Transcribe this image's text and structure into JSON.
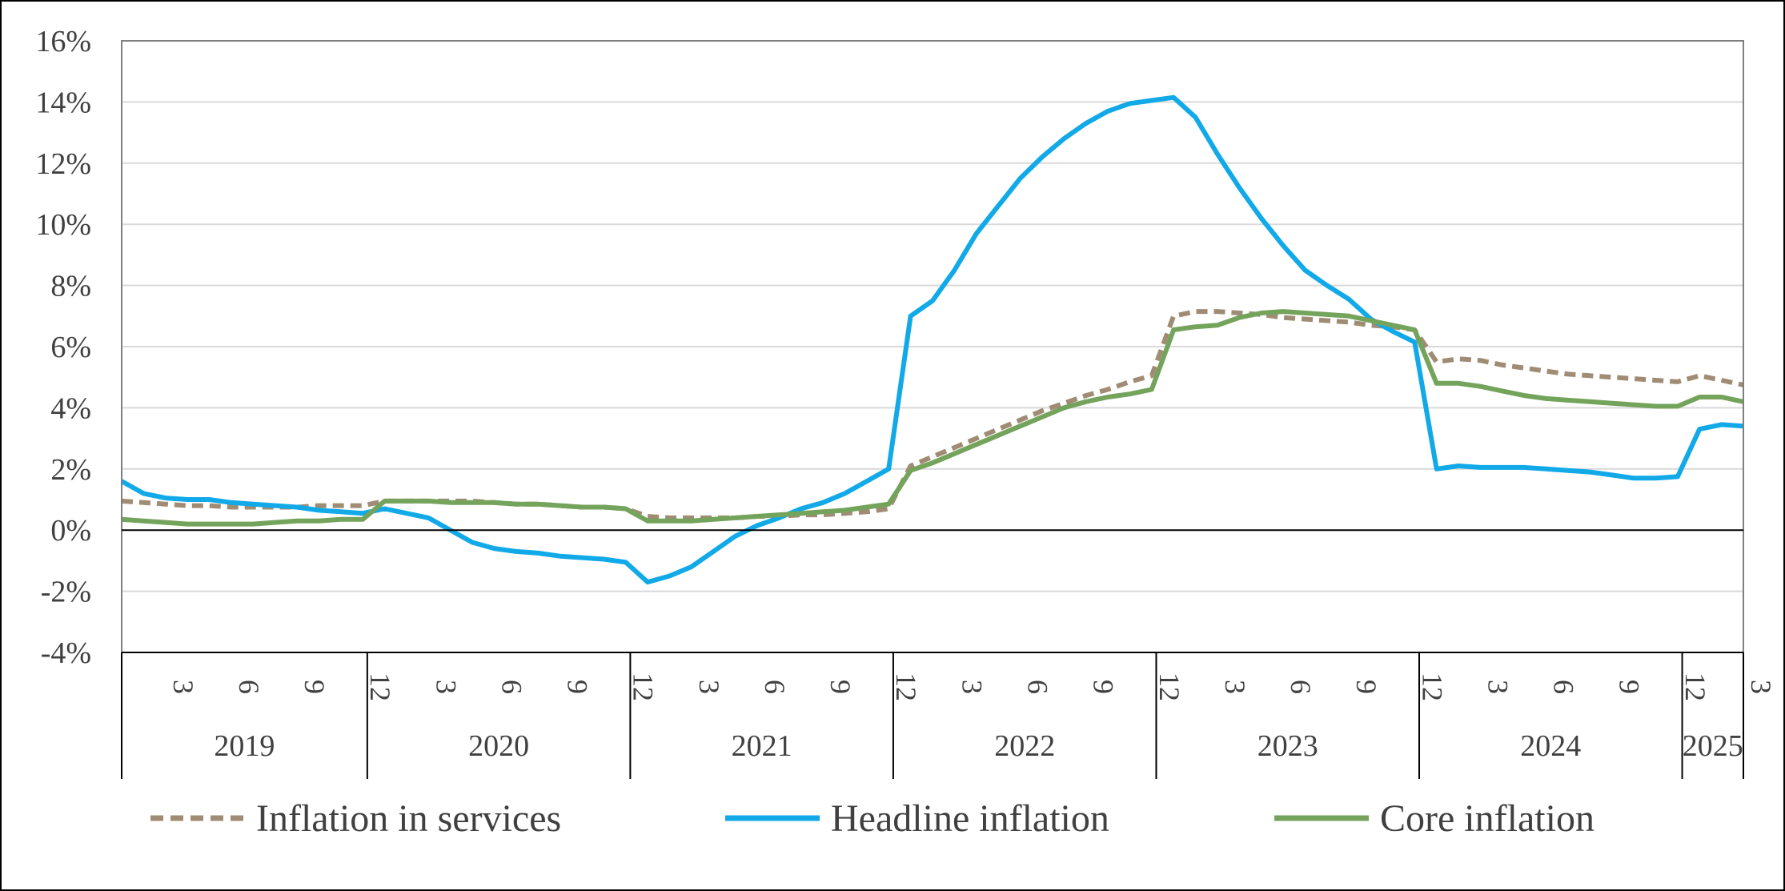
{
  "chart_data": {
    "type": "line",
    "title": "",
    "xlabel": "",
    "ylabel": "",
    "ylim": [
      -4,
      16
    ],
    "y_ticks": [
      -4,
      -2,
      0,
      2,
      4,
      6,
      8,
      10,
      12,
      14,
      16
    ],
    "y_tick_suffix": "%",
    "grid": "horizontal",
    "legend_position": "bottom",
    "month_ticks": [
      "3",
      "6",
      "9",
      "12"
    ],
    "years": [
      "2019",
      "2020",
      "2021",
      "2022",
      "2023",
      "2024",
      "2025"
    ],
    "x_start": "2019-01",
    "x_end": "2025-03",
    "series": [
      {
        "name": "Inflation in services",
        "color": "#a08c74",
        "dash": "dashed",
        "values": [
          0.95,
          0.9,
          0.85,
          0.8,
          0.8,
          0.75,
          0.75,
          0.75,
          0.75,
          0.8,
          0.8,
          0.8,
          0.95,
          0.95,
          0.95,
          0.95,
          0.95,
          0.9,
          0.85,
          0.85,
          0.8,
          0.75,
          0.75,
          0.7,
          0.45,
          0.4,
          0.4,
          0.4,
          0.4,
          0.45,
          0.45,
          0.5,
          0.5,
          0.55,
          0.6,
          0.7,
          2.1,
          2.4,
          2.7,
          3.0,
          3.3,
          3.6,
          3.9,
          4.15,
          4.4,
          4.6,
          4.85,
          5.05,
          7.0,
          7.15,
          7.15,
          7.1,
          7.05,
          6.95,
          6.9,
          6.85,
          6.8,
          6.7,
          6.65,
          6.55,
          5.5,
          5.6,
          5.55,
          5.4,
          5.3,
          5.2,
          5.1,
          5.05,
          5.0,
          4.95,
          4.9,
          4.85,
          5.05,
          4.9,
          4.75
        ]
      },
      {
        "name": "Headline inflation",
        "color": "#11a9e8",
        "dash": "solid",
        "values": [
          1.6,
          1.2,
          1.05,
          1.0,
          1.0,
          0.9,
          0.85,
          0.8,
          0.75,
          0.65,
          0.6,
          0.55,
          0.7,
          0.55,
          0.4,
          0.0,
          -0.4,
          -0.6,
          -0.7,
          -0.75,
          -0.85,
          -0.9,
          -0.95,
          -1.05,
          -1.7,
          -1.5,
          -1.2,
          -0.7,
          -0.2,
          0.15,
          0.4,
          0.7,
          0.9,
          1.2,
          1.6,
          2.0,
          7.0,
          7.5,
          8.5,
          9.7,
          10.6,
          11.5,
          12.2,
          12.8,
          13.3,
          13.7,
          13.95,
          14.05,
          14.15,
          13.5,
          12.3,
          11.2,
          10.2,
          9.3,
          8.5,
          8.0,
          7.55,
          6.9,
          6.5,
          6.15,
          2.0,
          2.1,
          2.05,
          2.05,
          2.05,
          2.0,
          1.95,
          1.9,
          1.8,
          1.7,
          1.7,
          1.75,
          3.3,
          3.45,
          3.4
        ]
      },
      {
        "name": "Core inflation",
        "color": "#74a35c",
        "dash": "solid",
        "values": [
          0.35,
          0.3,
          0.25,
          0.2,
          0.2,
          0.2,
          0.2,
          0.25,
          0.3,
          0.3,
          0.35,
          0.35,
          0.95,
          0.95,
          0.95,
          0.9,
          0.9,
          0.9,
          0.85,
          0.85,
          0.8,
          0.75,
          0.75,
          0.7,
          0.3,
          0.3,
          0.3,
          0.35,
          0.4,
          0.45,
          0.5,
          0.55,
          0.6,
          0.65,
          0.75,
          0.85,
          1.95,
          2.2,
          2.5,
          2.8,
          3.1,
          3.4,
          3.7,
          4.0,
          4.2,
          4.35,
          4.45,
          4.6,
          6.55,
          6.65,
          6.7,
          6.95,
          7.1,
          7.15,
          7.1,
          7.05,
          7.0,
          6.85,
          6.7,
          6.55,
          4.8,
          4.8,
          4.7,
          4.55,
          4.4,
          4.3,
          4.25,
          4.2,
          4.15,
          4.1,
          4.05,
          4.05,
          4.35,
          4.35,
          4.2
        ]
      }
    ]
  }
}
